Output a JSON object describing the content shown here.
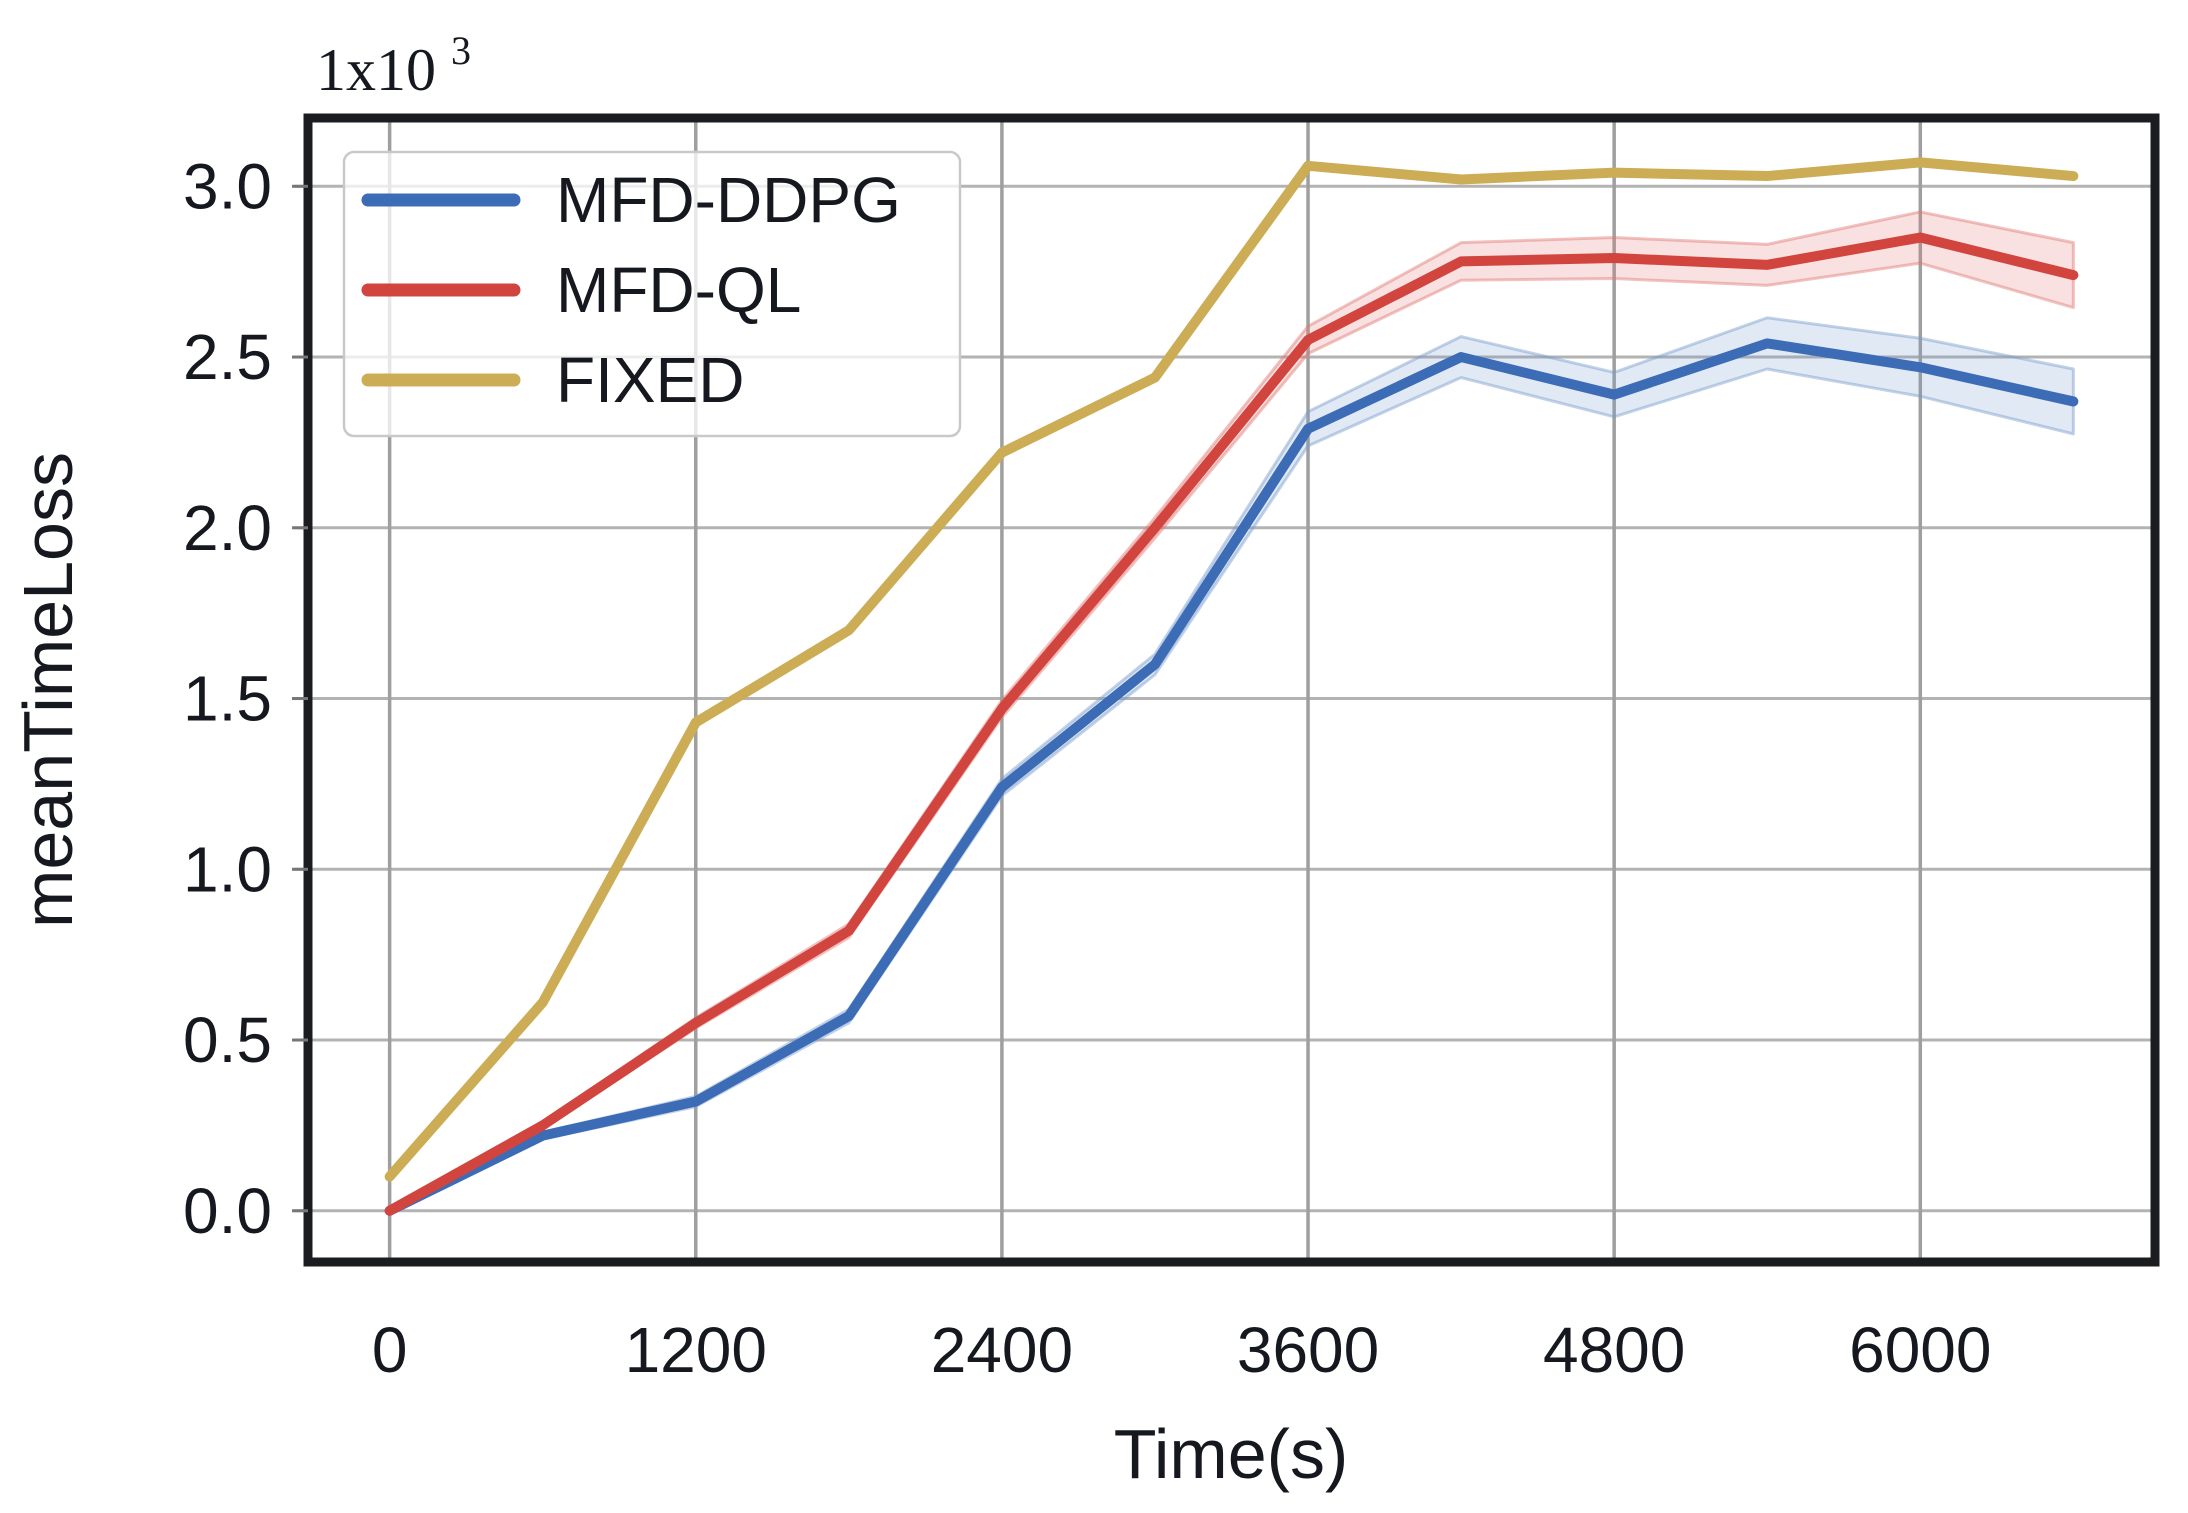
{
  "chart_data": {
    "type": "line",
    "title": "",
    "xlabel": "Time(s)",
    "ylabel": "meanTimeLoss",
    "y_offset": {
      "base": "1x10",
      "exponent": "3"
    },
    "x": [
      0,
      600,
      1200,
      1800,
      2400,
      3000,
      3600,
      4200,
      4800,
      5400,
      6000,
      6600
    ],
    "x_ticks": [
      0,
      1200,
      2400,
      3600,
      4800,
      6000
    ],
    "y_ticks": [
      0.0,
      0.5,
      1.0,
      1.5,
      2.0,
      2.5,
      3.0
    ],
    "xlim": [
      -320,
      6920
    ],
    "ylim": [
      -0.15,
      3.2
    ],
    "grid": true,
    "legend_position": "upper-left",
    "legend_entries": [
      "MFD-DDPG",
      "MFD-QL",
      "FIXED"
    ],
    "series": [
      {
        "name": "MFD-DDPG",
        "color": "#3b6cb5",
        "band_fill": "rgba(120,155,205,0.22)",
        "band_edge": "rgba(120,155,205,0.45)",
        "values": [
          0.0,
          0.22,
          0.32,
          0.57,
          1.24,
          1.6,
          2.29,
          2.5,
          2.39,
          2.54,
          2.47,
          2.37
        ],
        "band": [
          0.005,
          0.01,
          0.015,
          0.02,
          0.025,
          0.03,
          0.05,
          0.06,
          0.065,
          0.075,
          0.085,
          0.095
        ]
      },
      {
        "name": "MFD-QL",
        "color": "#d2443e",
        "band_fill": "rgba(225,120,115,0.22)",
        "band_edge": "rgba(225,120,115,0.45)",
        "values": [
          0.0,
          0.25,
          0.55,
          0.82,
          1.47,
          2.0,
          2.55,
          2.78,
          2.79,
          2.77,
          2.85,
          2.74
        ],
        "band": [
          0.005,
          0.01,
          0.015,
          0.02,
          0.025,
          0.03,
          0.04,
          0.055,
          0.06,
          0.06,
          0.075,
          0.095
        ]
      },
      {
        "name": "FIXED",
        "color": "#ccad55",
        "band_fill": "rgba(204,173,85,0.15)",
        "band_edge": "rgba(204,173,85,0.0)",
        "values": [
          0.1,
          0.61,
          1.43,
          1.7,
          2.22,
          2.44,
          3.06,
          3.02,
          3.04,
          3.03,
          3.07,
          3.03
        ],
        "band": [
          0,
          0,
          0,
          0,
          0,
          0,
          0,
          0,
          0,
          0,
          0,
          0
        ]
      }
    ],
    "colors": {
      "grid_h": "#b3b3b3",
      "grid_v": "#9f9f9f",
      "frame": "#1b1c20",
      "tick_text": "#15181e",
      "label_text": "#15181e",
      "legend_border": "#c9c9c9",
      "legend_bg": "rgba(255,255,255,0.75)",
      "background": "#ffffff"
    }
  }
}
